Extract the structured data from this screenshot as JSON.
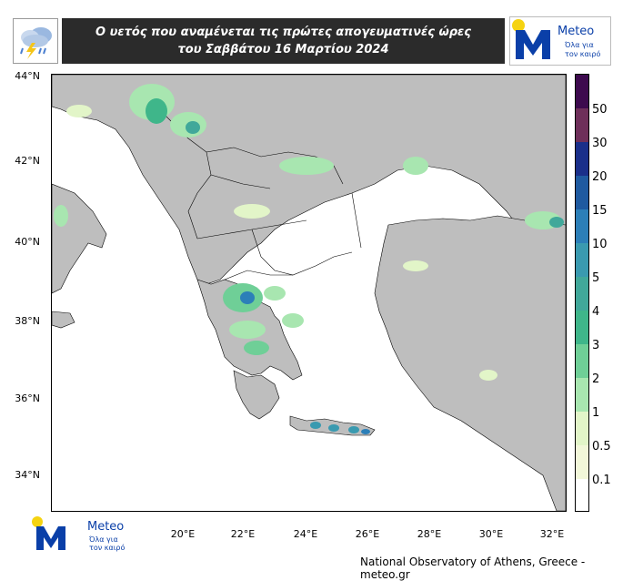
{
  "header": {
    "title_line1": "Ο υετός που αναμένεται τις πρώτες απογευματινές ώρες",
    "title_line2": "του Σαββάτου 16 Μαρτίου 2024",
    "weather_icon": "rain-cloud-lightning-icon"
  },
  "logo": {
    "name": "Meteo",
    "tagline_line1": "Όλα για",
    "tagline_line2": "τον καιρό",
    "colors": {
      "blue": "#0a3fa8",
      "yellow": "#f5d311"
    }
  },
  "map": {
    "lat_labels": [
      "44°N",
      "42°N",
      "40°N",
      "38°N",
      "36°N",
      "34°N"
    ],
    "lon_labels": [
      "20°E",
      "22°E",
      "24°E",
      "26°E",
      "28°E",
      "30°E",
      "32°E"
    ],
    "colors": {
      "land": "#bebebe",
      "sea": "#ffffff",
      "border": "#000000"
    }
  },
  "colorbar": {
    "labels": [
      "50",
      "30",
      "20",
      "15",
      "10",
      "5",
      "4",
      "3",
      "2",
      "1",
      "0.5",
      "0.1"
    ],
    "colors": [
      "#3d0a4e",
      "#6e2f5a",
      "#1a2f8a",
      "#1f5aa0",
      "#2c7fb8",
      "#3a9ab0",
      "#41a89a",
      "#3fb68a",
      "#6fcf97",
      "#a8e6b0",
      "#e2f5c8",
      "#f2f7d9",
      "#ffffff"
    ]
  },
  "footer": {
    "credit": "National Observatory of Athens, Greece - meteo.gr"
  }
}
